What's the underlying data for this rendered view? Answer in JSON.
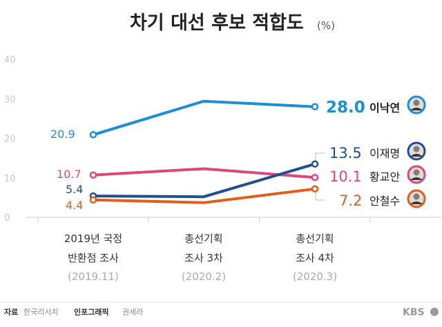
{
  "chart_data": {
    "type": "line",
    "title": "차기 대선 후보 적합도",
    "unit": "(%)",
    "ylim": [
      0,
      40
    ],
    "yticks": [
      0,
      10,
      20,
      30,
      40
    ],
    "categories": [
      {
        "line1": "2019년 국정",
        "line2": "반환점 조사",
        "line3": "(2019.11)"
      },
      {
        "line1": "총선기획",
        "line2": "조사 3차",
        "line3": "(2020.2)"
      },
      {
        "line1": "총선기획",
        "line2": "조사 4차",
        "line3": "(2020.3)"
      }
    ],
    "series": [
      {
        "name": "이낙연",
        "color": "#1b8fd2",
        "values": [
          20.9,
          29.4,
          28.0
        ],
        "start_label": "20.9",
        "end_label": "28.0"
      },
      {
        "name": "황교안",
        "color": "#e0457b",
        "values": [
          10.7,
          12.3,
          10.1
        ],
        "start_label": "10.7",
        "end_label": "10.1"
      },
      {
        "name": "이재명",
        "color": "#1d4f91",
        "values": [
          5.4,
          5.2,
          13.5
        ],
        "start_label": "5.4",
        "end_label": "13.5"
      },
      {
        "name": "안철수",
        "color": "#e05d1b",
        "values": [
          4.4,
          3.7,
          7.2
        ],
        "start_label": "4.4",
        "end_label": "7.2"
      }
    ],
    "grid": false,
    "legend": "right (labels at line ends)"
  },
  "footer": {
    "source_label": "자료",
    "source": "한국리서치",
    "infographic_label": "인포그래픽",
    "infographic_author": "권세라",
    "logo": "KBS"
  }
}
